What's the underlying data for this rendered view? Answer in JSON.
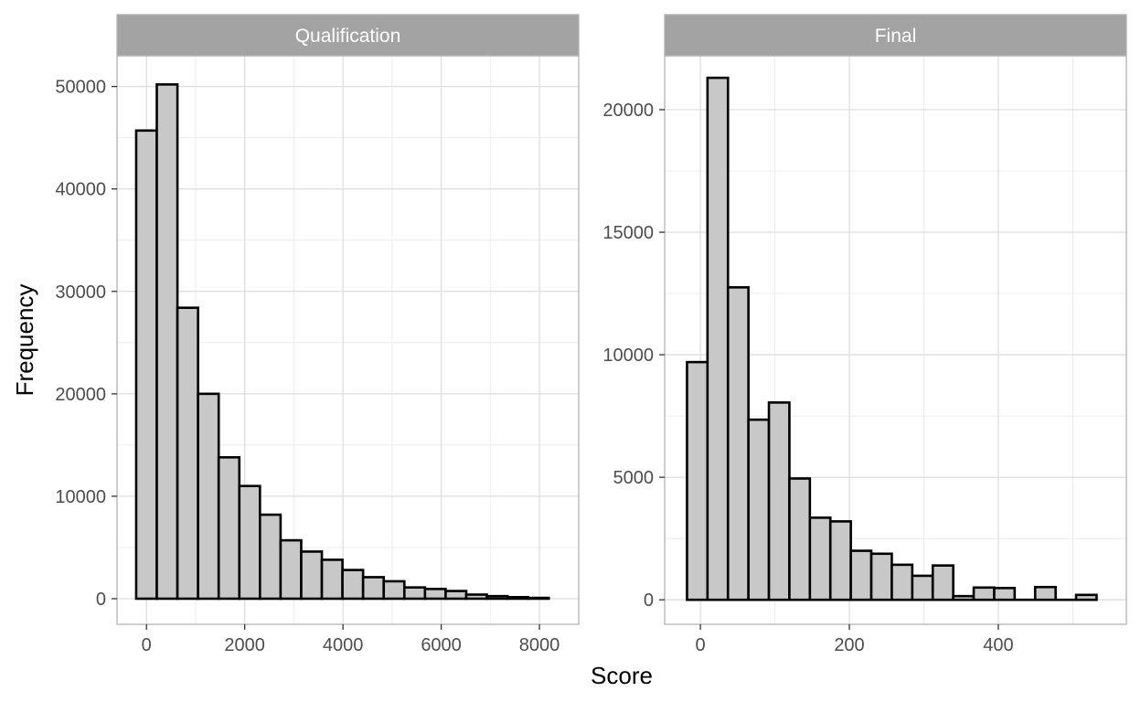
{
  "x_title": "Score",
  "y_title": "Frequency",
  "colors": {
    "bar_fill": "#c8c8c8",
    "bar_stroke": "#000000",
    "strip_fill": "#a3a3a3",
    "grid": "#dedede",
    "panel_border": "#b3b3b3",
    "tick_text": "#4d4d4d"
  },
  "chart_data": [
    {
      "type": "bar",
      "title": "Qualification",
      "xlabel": "Score",
      "ylabel": "Frequency",
      "grid": true,
      "xlim": [
        -600,
        8800
      ],
      "ylim": [
        -2500,
        53000
      ],
      "x_ticks": [
        0,
        2000,
        4000,
        6000,
        8000
      ],
      "y_ticks": [
        0,
        10000,
        20000,
        30000,
        40000,
        50000
      ],
      "bin_width": 420,
      "bin_start": -210,
      "values": [
        45700,
        50200,
        28400,
        20000,
        13800,
        11000,
        8200,
        5700,
        4600,
        3800,
        2800,
        2100,
        1700,
        1100,
        950,
        750,
        400,
        250,
        150,
        80
      ]
    },
    {
      "type": "bar",
      "title": "Final",
      "xlabel": "Score",
      "ylabel": "Frequency",
      "grid": true,
      "xlim": [
        -48,
        572
      ],
      "ylim": [
        -1000,
        22200
      ],
      "x_ticks": [
        0,
        200,
        400
      ],
      "y_ticks": [
        0,
        5000,
        10000,
        15000,
        20000
      ],
      "bin_width": 27.5,
      "bin_start": -18,
      "values": [
        9700,
        21300,
        12750,
        7350,
        8050,
        4950,
        3350,
        3200,
        2000,
        1880,
        1430,
        980,
        1400,
        150,
        500,
        480,
        0,
        520,
        0,
        200
      ]
    }
  ]
}
